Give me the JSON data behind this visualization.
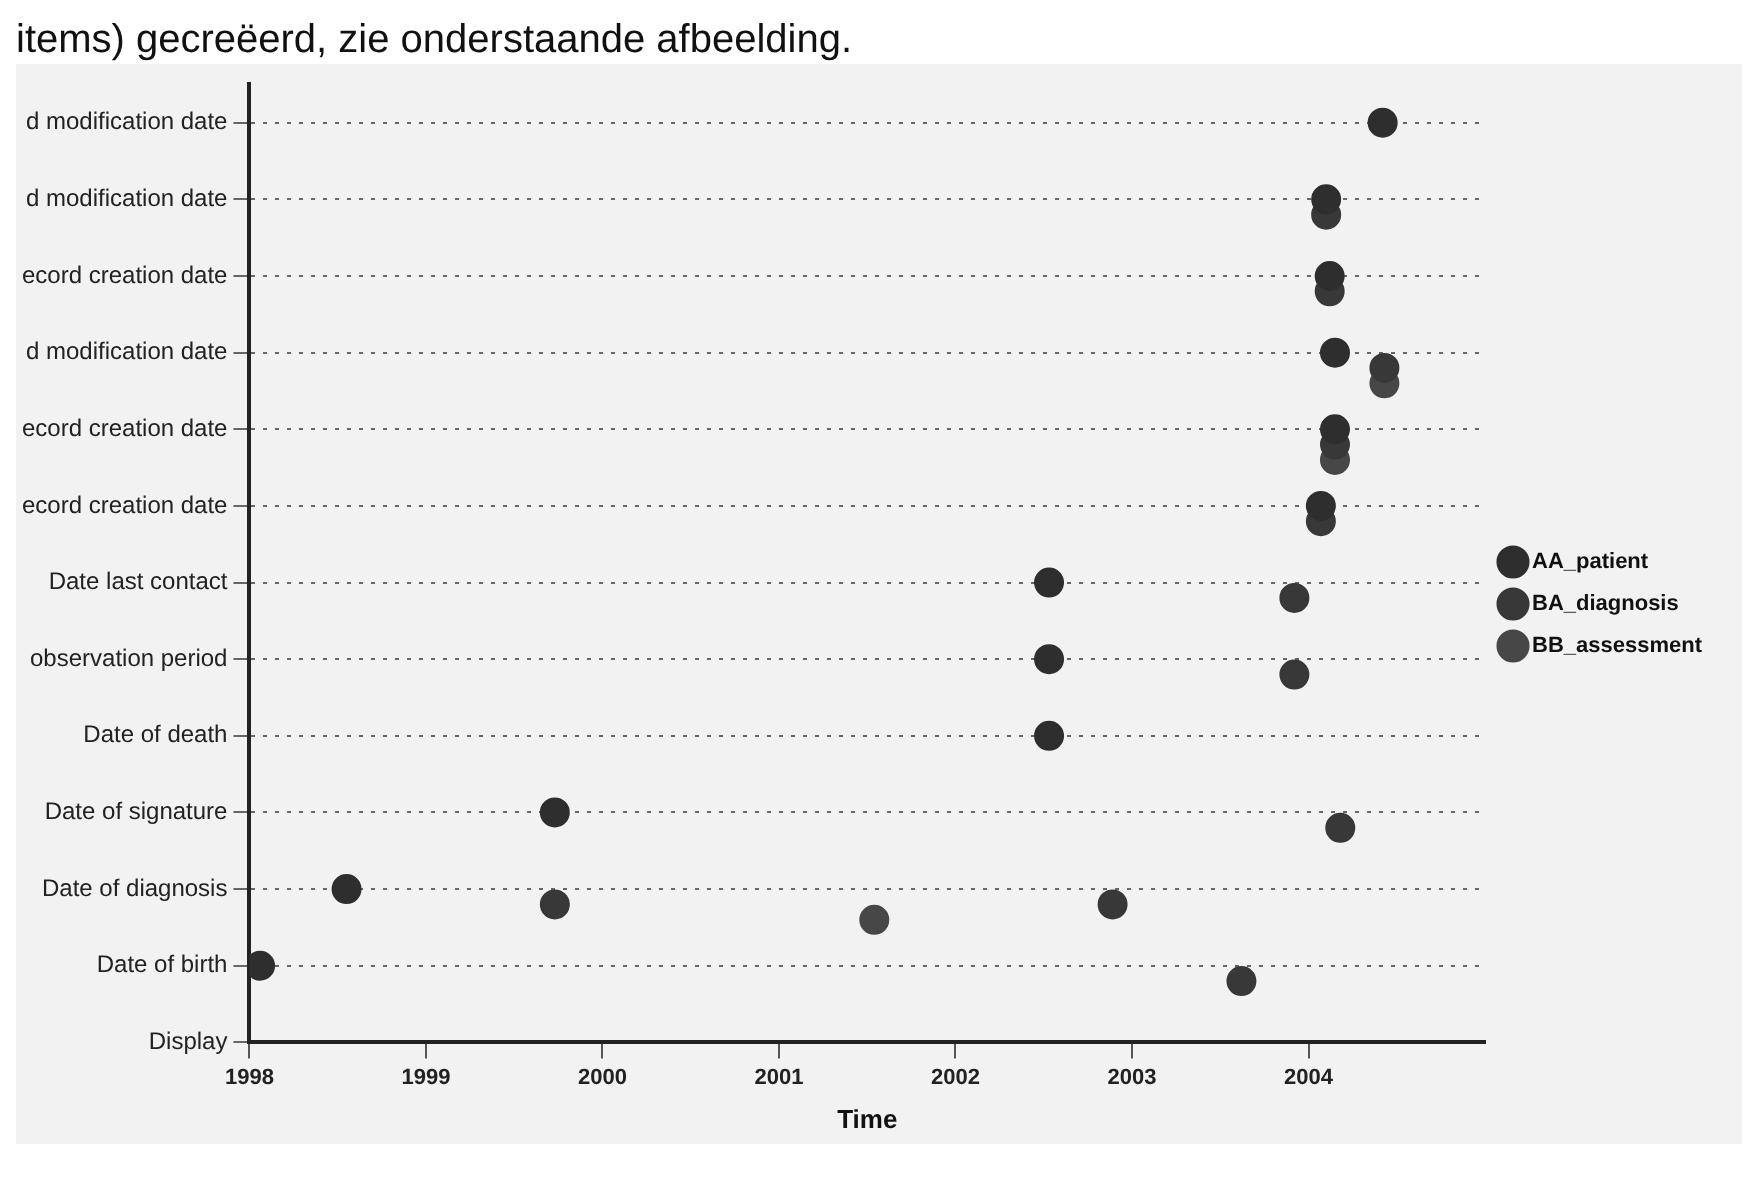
{
  "chart_data": {
    "type": "scatter",
    "orientation": "horizontal",
    "annotations": [
      "items) gecreëerd, zie onderstaande afbeelding."
    ],
    "categories": [
      "d modification date",
      "d modification date",
      "ecord creation date",
      "d modification date",
      "ecord creation date",
      "ecord creation date",
      "Date last contact",
      "observation period",
      "Date of death",
      "Date of signature",
      "Date of diagnosis",
      "Date of birth",
      "Display"
    ],
    "xlabel": "Time",
    "xlim": [
      1998,
      2005
    ],
    "xticks": [
      1998,
      1999,
      2000,
      2001,
      2002,
      2003,
      2004
    ],
    "grid": "y",
    "legend": "right",
    "marker": "circle",
    "series": [
      {
        "name": "AA_patient",
        "color": "#2e2e2e",
        "values": [
          2004.42,
          2004.1,
          2004.12,
          2004.15,
          2004.15,
          2004.07,
          2002.53,
          2002.53,
          2002.53,
          1999.73,
          1998.55,
          1998.06,
          null
        ]
      },
      {
        "name": "BA_diagnosis",
        "color": "#383838",
        "values": [
          null,
          2004.1,
          2004.12,
          2004.43,
          2004.15,
          2004.07,
          2003.92,
          2003.92,
          null,
          2004.18,
          1999.73,
          2003.62,
          null
        ]
      },
      {
        "name": "BB_assessment",
        "color": "#474747",
        "values": [
          null,
          null,
          null,
          2004.43,
          2004.15,
          null,
          null,
          null,
          null,
          null,
          2001.54,
          null,
          null
        ]
      },
      {
        "color": "#383838",
        "values": [
          null,
          null,
          null,
          null,
          null,
          null,
          null,
          null,
          null,
          null,
          2002.89,
          null,
          null
        ]
      }
    ]
  }
}
